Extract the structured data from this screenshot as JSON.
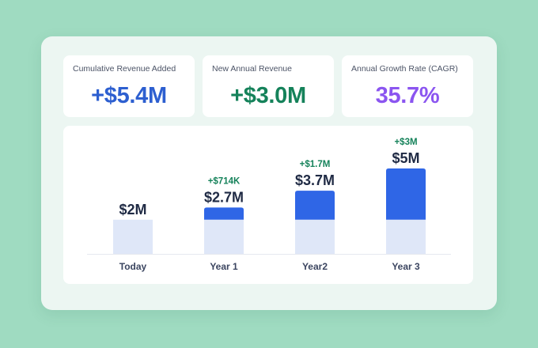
{
  "stats": [
    {
      "label": "Cumulative Revenue Added",
      "value": "+$5.4M",
      "color": "#2d5fd0"
    },
    {
      "label": "New Annual Revenue",
      "value": "+$3.0M",
      "color": "#15825a"
    },
    {
      "label": "Annual Growth Rate (CAGR)",
      "value": "35.7%",
      "color": "#8b55f0"
    }
  ],
  "chart_data": {
    "type": "bar",
    "categories": [
      "Today",
      "Year 1",
      "Year2",
      "Year 3"
    ],
    "series": [
      {
        "values": [
          2,
          2,
          2,
          2
        ],
        "color": "#dfe7f8"
      },
      {
        "values": [
          0,
          0.714,
          1.7,
          3
        ],
        "color": "#2f66e6"
      }
    ],
    "total_labels": [
      "$2M",
      "$2.7M",
      "$3.7M",
      "$5M"
    ],
    "increment_labels": [
      "",
      "+$714K",
      "+$1.7M",
      "+$3M"
    ],
    "total_label_color": "#1f2a44",
    "increment_label_color": "#15825a",
    "ylim": [
      0,
      5
    ],
    "grid": false
  }
}
